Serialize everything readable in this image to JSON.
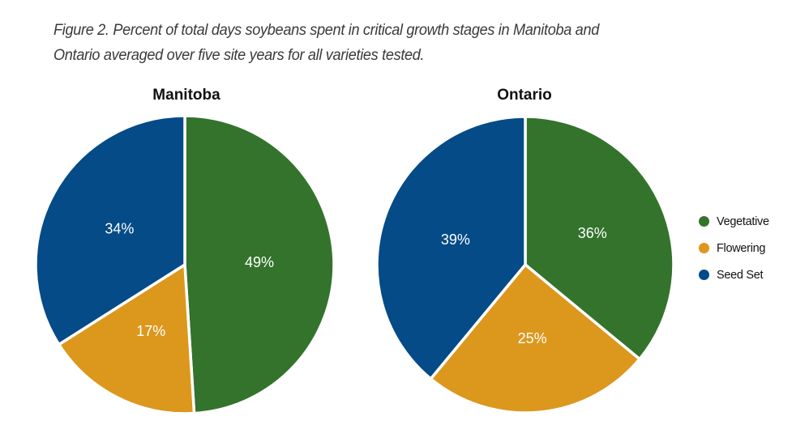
{
  "caption": {
    "line1": "Figure 2. Percent of total days soybeans spent in critical growth stages in Manitoba and",
    "line2": "Ontario averaged over five site years for all varieties tested."
  },
  "colors": {
    "Vegetative": "#33732c",
    "Flowering": "#dc971d",
    "Seed Set": "#044b87"
  },
  "chart_data": [
    {
      "type": "pie",
      "title": "Manitoba",
      "categories": [
        "Vegetative",
        "Flowering",
        "Seed Set"
      ],
      "values": [
        49,
        17,
        34
      ],
      "labels": [
        "49%",
        "17%",
        "34%"
      ],
      "start": "top",
      "direction": "clockwise",
      "legend": "right"
    },
    {
      "type": "pie",
      "title": "Ontario",
      "categories": [
        "Vegetative",
        "Flowering",
        "Seed Set"
      ],
      "values": [
        36,
        25,
        39
      ],
      "labels": [
        "36%",
        "25%",
        "39%"
      ],
      "start": "top",
      "direction": "clockwise",
      "legend": "right"
    }
  ],
  "legend": {
    "items": [
      {
        "label": "Vegetative",
        "color": "#33732c"
      },
      {
        "label": "Flowering",
        "color": "#dc971d"
      },
      {
        "label": "Seed Set",
        "color": "#044b87"
      }
    ]
  }
}
